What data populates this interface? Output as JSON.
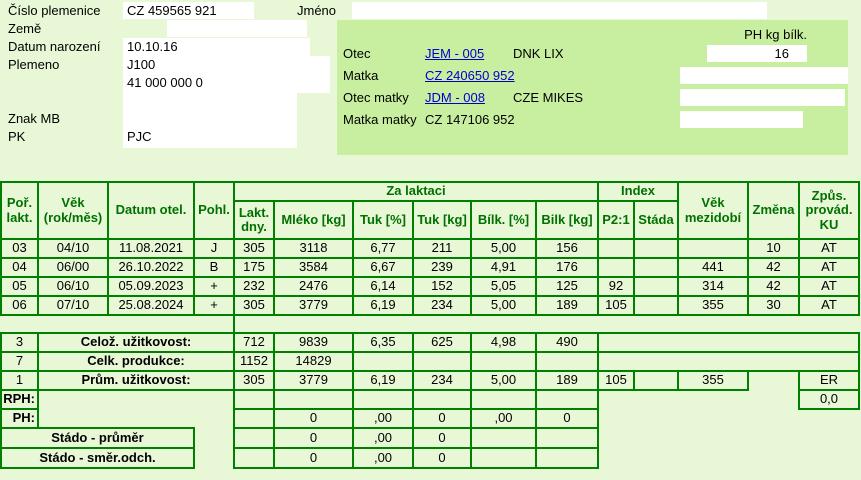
{
  "colors": {
    "page_bg": "#e8f8d6",
    "panel_bg": "#c8efa0",
    "table_border": "#008000",
    "header_text": "#007000",
    "link": "#0000cc",
    "field_bg": "#ffffff"
  },
  "info": {
    "fields": [
      {
        "label": "Číslo plemenice",
        "value": "CZ 459565 921"
      },
      {
        "label": "Jméno",
        "value": ""
      },
      {
        "label": "Země",
        "value": ""
      },
      {
        "label": "Datum narození",
        "value": "10.10.16"
      },
      {
        "label": "Plemeno",
        "value": "J100"
      },
      {
        "label": "",
        "value": "41 000 000 0"
      },
      {
        "label": "Znak MB",
        "value": ""
      },
      {
        "label": "PK",
        "value": "PJC"
      }
    ]
  },
  "pedigree": {
    "ph_header": "PH kg bílk.",
    "rows": [
      {
        "label": "Otec",
        "code": "JEM - 005",
        "code_is_link": true,
        "name": "DNK LIX",
        "ph": "16"
      },
      {
        "label": "Matka",
        "code": "CZ 240650 952",
        "code_is_link": true,
        "name": "",
        "ph": ""
      },
      {
        "label": "Otec matky",
        "code": "JDM - 008",
        "code_is_link": true,
        "name": "CZE MIKES",
        "ph": ""
      },
      {
        "label": "Matka matky",
        "code": "CZ 147106 952",
        "code_is_link": false,
        "name": "",
        "ph": ""
      }
    ]
  },
  "table": {
    "columns": [
      {
        "id": "por",
        "label": "Poř.\nlakt."
      },
      {
        "id": "vek",
        "label": "Věk\n(rok/měs)"
      },
      {
        "id": "datum-otel",
        "label": "Datum otel."
      },
      {
        "id": "pohl",
        "label": "Pohl."
      },
      {
        "id": "lakt-dny",
        "label": "Lakt.\ndny."
      },
      {
        "id": "mleko-kg",
        "label": "Mléko [kg]"
      },
      {
        "id": "tuk-pct",
        "label": "Tuk [%]"
      },
      {
        "id": "tuk-kg",
        "label": "Tuk [kg]"
      },
      {
        "id": "bilk-pct",
        "label": "Bílk. [%]"
      },
      {
        "id": "bilk-kg",
        "label": "Bilk [kg]"
      },
      {
        "id": "p21",
        "label": "P2:1"
      },
      {
        "id": "stada",
        "label": "Stáda"
      },
      {
        "id": "vek-mezidobi",
        "label": "Věk\nmezidobí"
      },
      {
        "id": "zmena",
        "label": "Změna"
      },
      {
        "id": "kuz",
        "label": "Způs.\nprovád.\nKU"
      }
    ],
    "groups": [
      {
        "label": "Za laktaci",
        "from": 4,
        "to": 9
      },
      {
        "label": "Index",
        "from": 10,
        "to": 11
      }
    ],
    "rows": [
      [
        "03",
        "04/10",
        "11.08.2021",
        "J",
        "305",
        "3118",
        "6,77",
        "211",
        "5,00",
        "156",
        "",
        "",
        "",
        "10",
        "AT"
      ],
      [
        "04",
        "06/00",
        "26.10.2022",
        "B",
        "175",
        "3584",
        "6,67",
        "239",
        "4,91",
        "176",
        "",
        "",
        "441",
        "42",
        "AT"
      ],
      [
        "05",
        "06/10",
        "05.09.2023",
        "+",
        "232",
        "2476",
        "6,14",
        "152",
        "5,05",
        "125",
        "92",
        "",
        "314",
        "42",
        "AT"
      ],
      [
        "06",
        "07/10",
        "25.08.2024",
        "+",
        "305",
        "3779",
        "6,19",
        "234",
        "5,00",
        "189",
        "105",
        "",
        "355",
        "30",
        "AT"
      ]
    ],
    "summary": [
      [
        {
          "c": 0,
          "t": "3"
        },
        {
          "c": 1,
          "s": 3,
          "t": "Celož. užitkovost:",
          "b": 1
        },
        {
          "c": 4,
          "t": "712"
        },
        {
          "c": 5,
          "t": "9839"
        },
        {
          "c": 6,
          "t": "6,35"
        },
        {
          "c": 7,
          "t": "625"
        },
        {
          "c": 8,
          "t": "4,98"
        },
        {
          "c": 9,
          "t": "490"
        },
        {
          "c": 10,
          "s": 5,
          "t": ""
        }
      ],
      [
        {
          "c": 0,
          "t": "7"
        },
        {
          "c": 1,
          "s": 3,
          "t": "Celk. produkce:",
          "b": 1
        },
        {
          "c": 4,
          "t": "1152"
        },
        {
          "c": 5,
          "t": "14829"
        },
        {
          "c": 6,
          "t": ""
        },
        {
          "c": 7,
          "t": ""
        },
        {
          "c": 8,
          "t": ""
        },
        {
          "c": 9,
          "t": ""
        },
        {
          "c": 10,
          "s": 5,
          "t": ""
        }
      ],
      [
        {
          "c": 0,
          "t": "1"
        },
        {
          "c": 1,
          "s": 3,
          "t": "Prům. užitkovost:",
          "b": 1
        },
        {
          "c": 4,
          "t": "305"
        },
        {
          "c": 5,
          "t": "3779"
        },
        {
          "c": 6,
          "t": "6,19"
        },
        {
          "c": 7,
          "t": "234"
        },
        {
          "c": 8,
          "t": "5,00"
        },
        {
          "c": 9,
          "t": "189"
        },
        {
          "c": 10,
          "t": "105"
        },
        {
          "c": 11,
          "t": ""
        },
        {
          "c": 12,
          "t": "355"
        },
        {
          "c": 14,
          "t": "ER"
        }
      ]
    ],
    "bottom": [
      {
        "label": "RPH:",
        "label_span": 1,
        "cells": [
          {
            "c": 4,
            "t": ""
          },
          {
            "c": 5,
            "t": ""
          },
          {
            "c": 6,
            "t": ""
          },
          {
            "c": 7,
            "t": ""
          },
          {
            "c": 8,
            "t": ""
          },
          {
            "c": 9,
            "t": ""
          },
          {
            "c": 14,
            "t": "0,0"
          }
        ]
      },
      {
        "label": "PH:",
        "label_span": 1,
        "cells": [
          {
            "c": 4,
            "t": ""
          },
          {
            "c": 5,
            "t": "0"
          },
          {
            "c": 6,
            "t": ",00"
          },
          {
            "c": 7,
            "t": "0"
          },
          {
            "c": 8,
            "t": ",00"
          },
          {
            "c": 9,
            "t": "0"
          }
        ]
      },
      {
        "label": "Stádo - průměr",
        "label_span": 3,
        "cells": [
          {
            "c": 4,
            "t": ""
          },
          {
            "c": 5,
            "t": "0"
          },
          {
            "c": 6,
            "t": ",00"
          },
          {
            "c": 7,
            "t": "0"
          },
          {
            "c": 8,
            "t": ""
          },
          {
            "c": 9,
            "t": ""
          }
        ]
      },
      {
        "label": "Stádo - směr.odch.",
        "label_span": 3,
        "cells": [
          {
            "c": 4,
            "t": ""
          },
          {
            "c": 5,
            "t": "0"
          },
          {
            "c": 6,
            "t": ",00"
          },
          {
            "c": 7,
            "t": "0"
          },
          {
            "c": 8,
            "t": ""
          },
          {
            "c": 9,
            "t": ""
          }
        ]
      }
    ]
  }
}
